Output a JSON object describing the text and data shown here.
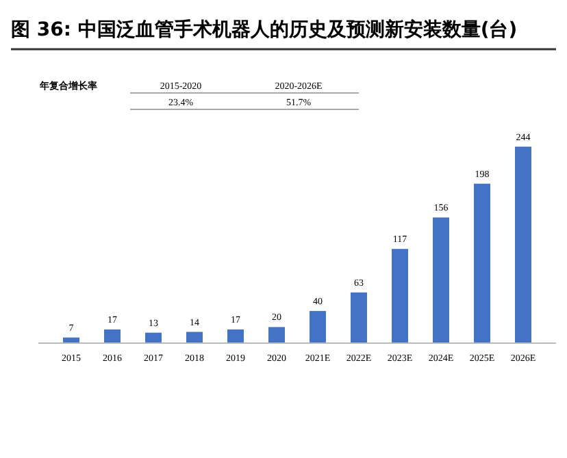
{
  "chart_data": {
    "type": "bar",
    "title": "图 36: 中国泛血管手术机器人的历史及预测新安装数量(台)",
    "categories": [
      "2015",
      "2016",
      "2017",
      "2018",
      "2019",
      "2020",
      "2021E",
      "2022E",
      "2023E",
      "2024E",
      "2025E",
      "2026E"
    ],
    "values": [
      7,
      17,
      13,
      14,
      17,
      20,
      40,
      63,
      117,
      156,
      198,
      244
    ],
    "color": "#4472c4",
    "data_labels": true,
    "annotations": [
      "年复合增长率",
      "2015-2020",
      "2020-2026E",
      "23.4%",
      "51.7%"
    ]
  }
}
